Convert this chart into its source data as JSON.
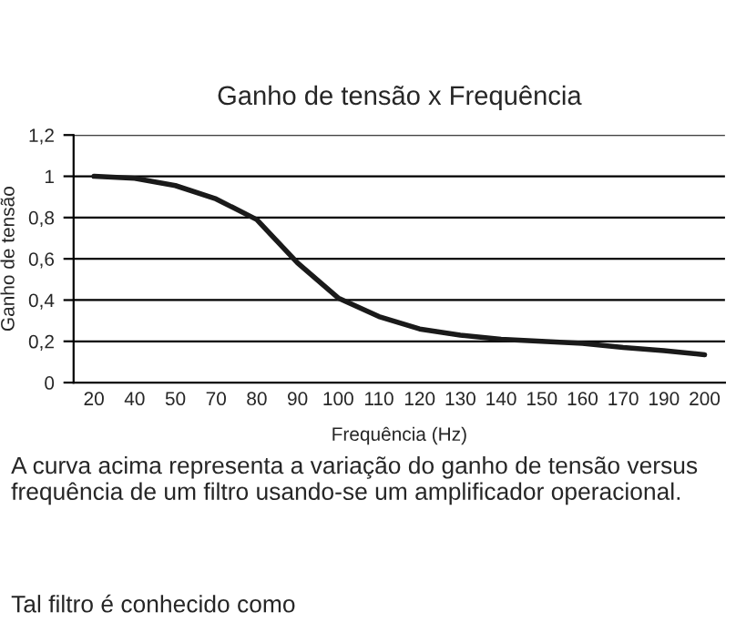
{
  "chart_data": {
    "type": "line",
    "title": "Ganho de tensão x Frequência",
    "xlabel": "Frequência (Hz)",
    "ylabel": "Ganho de tensão",
    "categories": [
      "20",
      "40",
      "50",
      "70",
      "80",
      "90",
      "100",
      "110",
      "120",
      "130",
      "140",
      "150",
      "160",
      "170",
      "190",
      "200"
    ],
    "series": [
      {
        "color": "#1a1a1a",
        "values": [
          1.0,
          0.99,
          0.955,
          0.89,
          0.79,
          0.58,
          0.41,
          0.32,
          0.26,
          0.23,
          0.21,
          0.2,
          0.19,
          0.17,
          0.155,
          0.135
        ]
      }
    ],
    "ylim": [
      0,
      1.2
    ],
    "yticks": [
      0,
      {
        "value": 0.2,
        "label": "0,2"
      },
      {
        "value": 0.4,
        "label": "0,4"
      },
      {
        "value": 0.6,
        "label": "0,6"
      },
      {
        "value": 0.8,
        "label": "0,8"
      },
      1,
      {
        "value": 1.2,
        "label": "1,2"
      }
    ],
    "grid": "y",
    "marker": "none",
    "line_style": "solid",
    "annotations": [
      "A curva acima representa a variação do ganho de tensão versus frequência de um filtro usando-se um amplificador operacional.",
      "Tal filtro é conhecido como"
    ]
  }
}
